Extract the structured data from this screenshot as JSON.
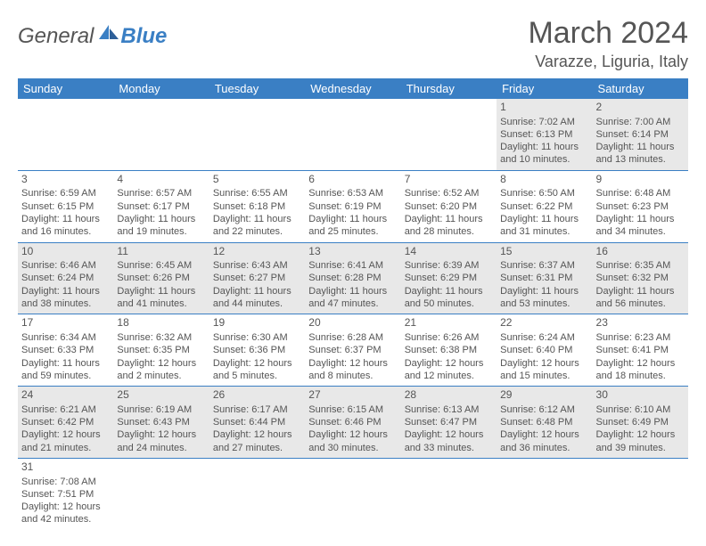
{
  "brand": {
    "part1": "General",
    "part2": "Blue"
  },
  "title": "March 2024",
  "location": "Varazze, Liguria, Italy",
  "colors": {
    "header_bg": "#3a7fc4",
    "header_text": "#ffffff",
    "row_alt_bg": "#e8e8e8",
    "text": "#555555",
    "rule": "#3a7fc4"
  },
  "weekdays": [
    "Sunday",
    "Monday",
    "Tuesday",
    "Wednesday",
    "Thursday",
    "Friday",
    "Saturday"
  ],
  "weeks": [
    [
      null,
      null,
      null,
      null,
      null,
      {
        "n": "1",
        "sr": "Sunrise: 7:02 AM",
        "ss": "Sunset: 6:13 PM",
        "dl1": "Daylight: 11 hours",
        "dl2": "and 10 minutes."
      },
      {
        "n": "2",
        "sr": "Sunrise: 7:00 AM",
        "ss": "Sunset: 6:14 PM",
        "dl1": "Daylight: 11 hours",
        "dl2": "and 13 minutes."
      }
    ],
    [
      {
        "n": "3",
        "sr": "Sunrise: 6:59 AM",
        "ss": "Sunset: 6:15 PM",
        "dl1": "Daylight: 11 hours",
        "dl2": "and 16 minutes."
      },
      {
        "n": "4",
        "sr": "Sunrise: 6:57 AM",
        "ss": "Sunset: 6:17 PM",
        "dl1": "Daylight: 11 hours",
        "dl2": "and 19 minutes."
      },
      {
        "n": "5",
        "sr": "Sunrise: 6:55 AM",
        "ss": "Sunset: 6:18 PM",
        "dl1": "Daylight: 11 hours",
        "dl2": "and 22 minutes."
      },
      {
        "n": "6",
        "sr": "Sunrise: 6:53 AM",
        "ss": "Sunset: 6:19 PM",
        "dl1": "Daylight: 11 hours",
        "dl2": "and 25 minutes."
      },
      {
        "n": "7",
        "sr": "Sunrise: 6:52 AM",
        "ss": "Sunset: 6:20 PM",
        "dl1": "Daylight: 11 hours",
        "dl2": "and 28 minutes."
      },
      {
        "n": "8",
        "sr": "Sunrise: 6:50 AM",
        "ss": "Sunset: 6:22 PM",
        "dl1": "Daylight: 11 hours",
        "dl2": "and 31 minutes."
      },
      {
        "n": "9",
        "sr": "Sunrise: 6:48 AM",
        "ss": "Sunset: 6:23 PM",
        "dl1": "Daylight: 11 hours",
        "dl2": "and 34 minutes."
      }
    ],
    [
      {
        "n": "10",
        "sr": "Sunrise: 6:46 AM",
        "ss": "Sunset: 6:24 PM",
        "dl1": "Daylight: 11 hours",
        "dl2": "and 38 minutes."
      },
      {
        "n": "11",
        "sr": "Sunrise: 6:45 AM",
        "ss": "Sunset: 6:26 PM",
        "dl1": "Daylight: 11 hours",
        "dl2": "and 41 minutes."
      },
      {
        "n": "12",
        "sr": "Sunrise: 6:43 AM",
        "ss": "Sunset: 6:27 PM",
        "dl1": "Daylight: 11 hours",
        "dl2": "and 44 minutes."
      },
      {
        "n": "13",
        "sr": "Sunrise: 6:41 AM",
        "ss": "Sunset: 6:28 PM",
        "dl1": "Daylight: 11 hours",
        "dl2": "and 47 minutes."
      },
      {
        "n": "14",
        "sr": "Sunrise: 6:39 AM",
        "ss": "Sunset: 6:29 PM",
        "dl1": "Daylight: 11 hours",
        "dl2": "and 50 minutes."
      },
      {
        "n": "15",
        "sr": "Sunrise: 6:37 AM",
        "ss": "Sunset: 6:31 PM",
        "dl1": "Daylight: 11 hours",
        "dl2": "and 53 minutes."
      },
      {
        "n": "16",
        "sr": "Sunrise: 6:35 AM",
        "ss": "Sunset: 6:32 PM",
        "dl1": "Daylight: 11 hours",
        "dl2": "and 56 minutes."
      }
    ],
    [
      {
        "n": "17",
        "sr": "Sunrise: 6:34 AM",
        "ss": "Sunset: 6:33 PM",
        "dl1": "Daylight: 11 hours",
        "dl2": "and 59 minutes."
      },
      {
        "n": "18",
        "sr": "Sunrise: 6:32 AM",
        "ss": "Sunset: 6:35 PM",
        "dl1": "Daylight: 12 hours",
        "dl2": "and 2 minutes."
      },
      {
        "n": "19",
        "sr": "Sunrise: 6:30 AM",
        "ss": "Sunset: 6:36 PM",
        "dl1": "Daylight: 12 hours",
        "dl2": "and 5 minutes."
      },
      {
        "n": "20",
        "sr": "Sunrise: 6:28 AM",
        "ss": "Sunset: 6:37 PM",
        "dl1": "Daylight: 12 hours",
        "dl2": "and 8 minutes."
      },
      {
        "n": "21",
        "sr": "Sunrise: 6:26 AM",
        "ss": "Sunset: 6:38 PM",
        "dl1": "Daylight: 12 hours",
        "dl2": "and 12 minutes."
      },
      {
        "n": "22",
        "sr": "Sunrise: 6:24 AM",
        "ss": "Sunset: 6:40 PM",
        "dl1": "Daylight: 12 hours",
        "dl2": "and 15 minutes."
      },
      {
        "n": "23",
        "sr": "Sunrise: 6:23 AM",
        "ss": "Sunset: 6:41 PM",
        "dl1": "Daylight: 12 hours",
        "dl2": "and 18 minutes."
      }
    ],
    [
      {
        "n": "24",
        "sr": "Sunrise: 6:21 AM",
        "ss": "Sunset: 6:42 PM",
        "dl1": "Daylight: 12 hours",
        "dl2": "and 21 minutes."
      },
      {
        "n": "25",
        "sr": "Sunrise: 6:19 AM",
        "ss": "Sunset: 6:43 PM",
        "dl1": "Daylight: 12 hours",
        "dl2": "and 24 minutes."
      },
      {
        "n": "26",
        "sr": "Sunrise: 6:17 AM",
        "ss": "Sunset: 6:44 PM",
        "dl1": "Daylight: 12 hours",
        "dl2": "and 27 minutes."
      },
      {
        "n": "27",
        "sr": "Sunrise: 6:15 AM",
        "ss": "Sunset: 6:46 PM",
        "dl1": "Daylight: 12 hours",
        "dl2": "and 30 minutes."
      },
      {
        "n": "28",
        "sr": "Sunrise: 6:13 AM",
        "ss": "Sunset: 6:47 PM",
        "dl1": "Daylight: 12 hours",
        "dl2": "and 33 minutes."
      },
      {
        "n": "29",
        "sr": "Sunrise: 6:12 AM",
        "ss": "Sunset: 6:48 PM",
        "dl1": "Daylight: 12 hours",
        "dl2": "and 36 minutes."
      },
      {
        "n": "30",
        "sr": "Sunrise: 6:10 AM",
        "ss": "Sunset: 6:49 PM",
        "dl1": "Daylight: 12 hours",
        "dl2": "and 39 minutes."
      }
    ],
    [
      {
        "n": "31",
        "sr": "Sunrise: 7:08 AM",
        "ss": "Sunset: 7:51 PM",
        "dl1": "Daylight: 12 hours",
        "dl2": "and 42 minutes."
      },
      null,
      null,
      null,
      null,
      null,
      null
    ]
  ]
}
